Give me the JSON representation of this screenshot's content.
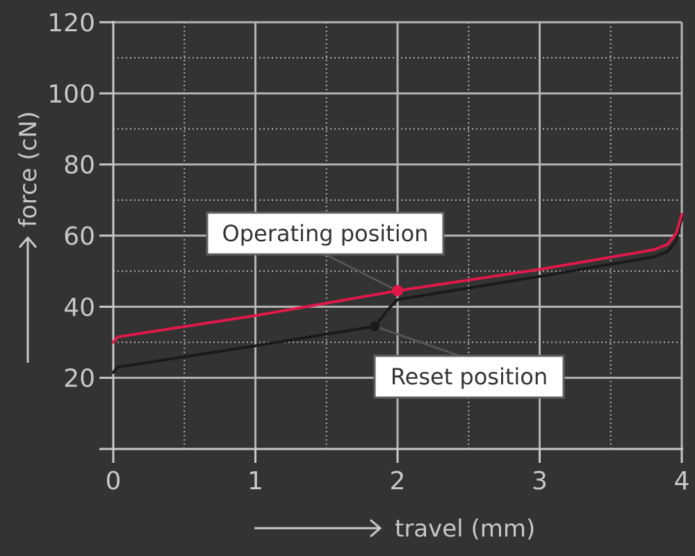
{
  "chart_data": {
    "type": "line",
    "xlabel": "travel (mm)",
    "ylabel": "force (cN)",
    "xlim": [
      0,
      4
    ],
    "ylim": [
      0,
      120
    ],
    "x_ticks": [
      0,
      1,
      2,
      3,
      4
    ],
    "y_ticks": [
      20,
      40,
      60,
      80,
      100,
      120
    ],
    "grid": true,
    "series": [
      {
        "color": "#e0194a",
        "points": [
          [
            0,
            30
          ],
          [
            0.03,
            31.5
          ],
          [
            1,
            37.5
          ],
          [
            2,
            44.5
          ],
          [
            3,
            50.5
          ],
          [
            3.8,
            56
          ],
          [
            3.9,
            57.5
          ],
          [
            3.96,
            60.5
          ],
          [
            4,
            66
          ]
        ]
      },
      {
        "color": "#1a1a1a",
        "points": [
          [
            0,
            21.5
          ],
          [
            0.03,
            23
          ],
          [
            1,
            29
          ],
          [
            1.84,
            34.5
          ],
          [
            1.95,
            40
          ],
          [
            2,
            42
          ],
          [
            3,
            48.5
          ],
          [
            3.8,
            54
          ],
          [
            3.9,
            55.5
          ],
          [
            3.96,
            58.5
          ],
          [
            4,
            65
          ]
        ]
      }
    ],
    "annotations": [
      {
        "text": "Operating position",
        "point": [
          2,
          44.5
        ],
        "color": "#e0194a"
      },
      {
        "text": "Reset position",
        "point": [
          1.84,
          34.5
        ],
        "color": "#1a1a1a"
      }
    ]
  }
}
